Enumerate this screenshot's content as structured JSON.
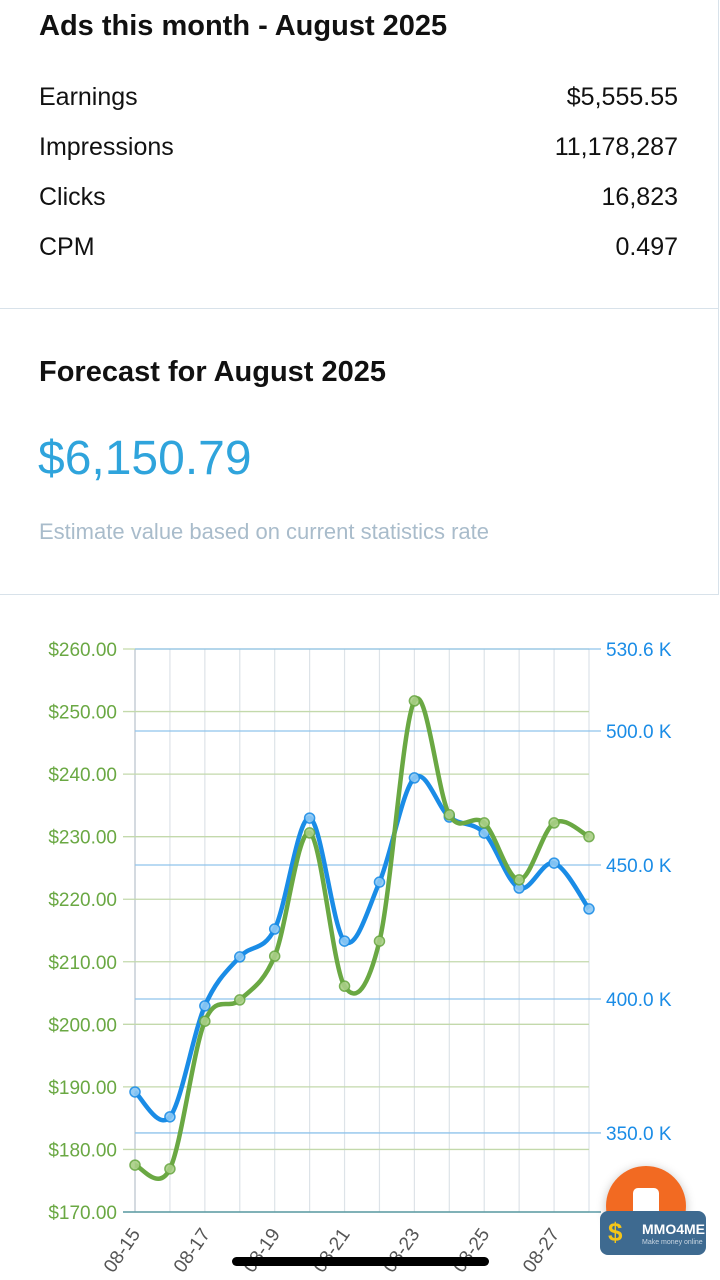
{
  "summary": {
    "title": "Ads this month - August 2025",
    "rows": [
      {
        "label": "Earnings",
        "value": "$5,555.55"
      },
      {
        "label": "Impressions",
        "value": "11,178,287"
      },
      {
        "label": "Clicks",
        "value": "16,823"
      },
      {
        "label": "CPM",
        "value": "0.497"
      }
    ]
  },
  "forecast": {
    "title": "Forecast for August 2025",
    "amount": "$6,150.79",
    "note": "Estimate value based on current statistics rate"
  },
  "chart_data": {
    "type": "line",
    "x": [
      "08-15",
      "08-16",
      "08-17",
      "08-18",
      "08-19",
      "08-20",
      "08-21",
      "08-22",
      "08-23",
      "08-24",
      "08-25",
      "08-26",
      "08-27",
      "08-28"
    ],
    "x_tick_labels": [
      "08-15",
      "08-17",
      "08-19",
      "08-21",
      "08-23",
      "08-25",
      "08-27"
    ],
    "series": [
      {
        "axis": "left",
        "color": "#6aa843",
        "values": [
          177.5,
          176.9,
          200.5,
          203.9,
          210.9,
          230.6,
          206.1,
          213.3,
          251.7,
          233.5,
          232.2,
          223.1,
          232.2,
          230.0
        ]
      },
      {
        "axis": "right",
        "color": "#1a8ce6",
        "values": [
          365.3,
          356.0,
          397.4,
          415.7,
          426.1,
          467.5,
          421.6,
          443.6,
          482.5,
          467.9,
          461.9,
          441.4,
          450.7,
          433.6
        ]
      }
    ],
    "left_axis": {
      "ylim": [
        170,
        260
      ],
      "ticks": [
        "$170.00",
        "$180.00",
        "$190.00",
        "$200.00",
        "$210.00",
        "$220.00",
        "$230.00",
        "$240.00",
        "$250.00",
        "$260.00"
      ],
      "color": "#6aa843"
    },
    "right_axis": {
      "ylim": [
        320.5,
        530.6
      ],
      "tick_values": [
        350,
        400,
        450,
        500,
        530.6
      ],
      "ticks": [
        "350.0 K",
        "400.0 K",
        "450.0 K",
        "500.0 K",
        "530.6 K"
      ],
      "color": "#1a8ce6"
    },
    "grid": true
  },
  "watermark": {
    "title": "MMO4ME",
    "subtitle": "Make money online"
  },
  "icons": {
    "fab": "chat-icon"
  }
}
